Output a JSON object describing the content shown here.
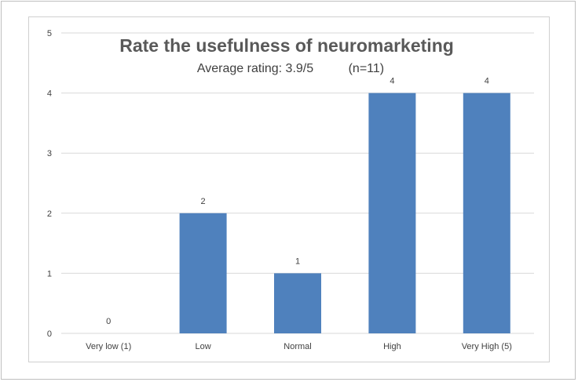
{
  "chart_data": {
    "type": "bar",
    "title": "Rate the usefulness of neuromarketing",
    "subtitle": "Average rating: 3.9/5          (n=11)",
    "categories": [
      "Very low (1)",
      "Low",
      "Normal",
      "High",
      "Very High (5)"
    ],
    "values": [
      0,
      2,
      1,
      4,
      4
    ],
    "data_labels": [
      "0",
      "2",
      "1",
      "4",
      "4"
    ],
    "yticks": [
      "0",
      "1",
      "2",
      "3",
      "4",
      "5"
    ],
    "ylim": [
      0,
      5
    ],
    "xlabel": "",
    "ylabel": "",
    "grid": true,
    "legend": "none",
    "bar_color": "#4f81bd",
    "grid_color": "#d9d9d9"
  }
}
